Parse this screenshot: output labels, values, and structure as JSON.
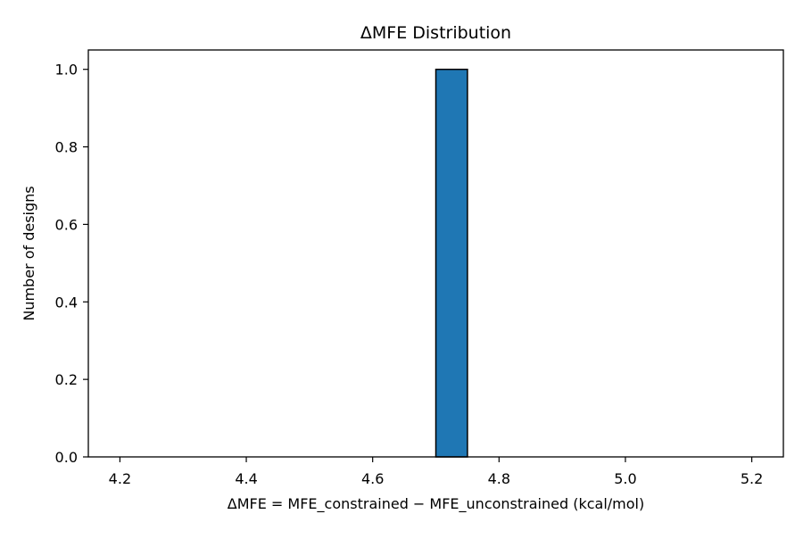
{
  "chart_data": {
    "type": "bar",
    "subtype": "histogram",
    "title": "ΔMFE Distribution",
    "xlabel": "ΔMFE = MFE_constrained − MFE_unconstrained (kcal/mol)",
    "ylabel": "Number of designs",
    "xlim": [
      4.15,
      5.25
    ],
    "ylim": [
      0.0,
      1.05
    ],
    "xticks": [
      4.2,
      4.4,
      4.6,
      4.8,
      5.0,
      5.2
    ],
    "xtick_labels": [
      "4.2",
      "4.4",
      "4.6",
      "4.8",
      "5.0",
      "5.2"
    ],
    "yticks": [
      0.0,
      0.2,
      0.4,
      0.6,
      0.8,
      1.0
    ],
    "ytick_labels": [
      "0.0",
      "0.2",
      "0.4",
      "0.6",
      "0.8",
      "1.0"
    ],
    "bins": [
      {
        "x0": 4.7,
        "x1": 4.75,
        "count": 1
      }
    ],
    "grid": false,
    "colors": {
      "bar_fill": "#1f77b4",
      "bar_edge": "#000000",
      "axes": "#000000",
      "background": "#ffffff"
    }
  }
}
